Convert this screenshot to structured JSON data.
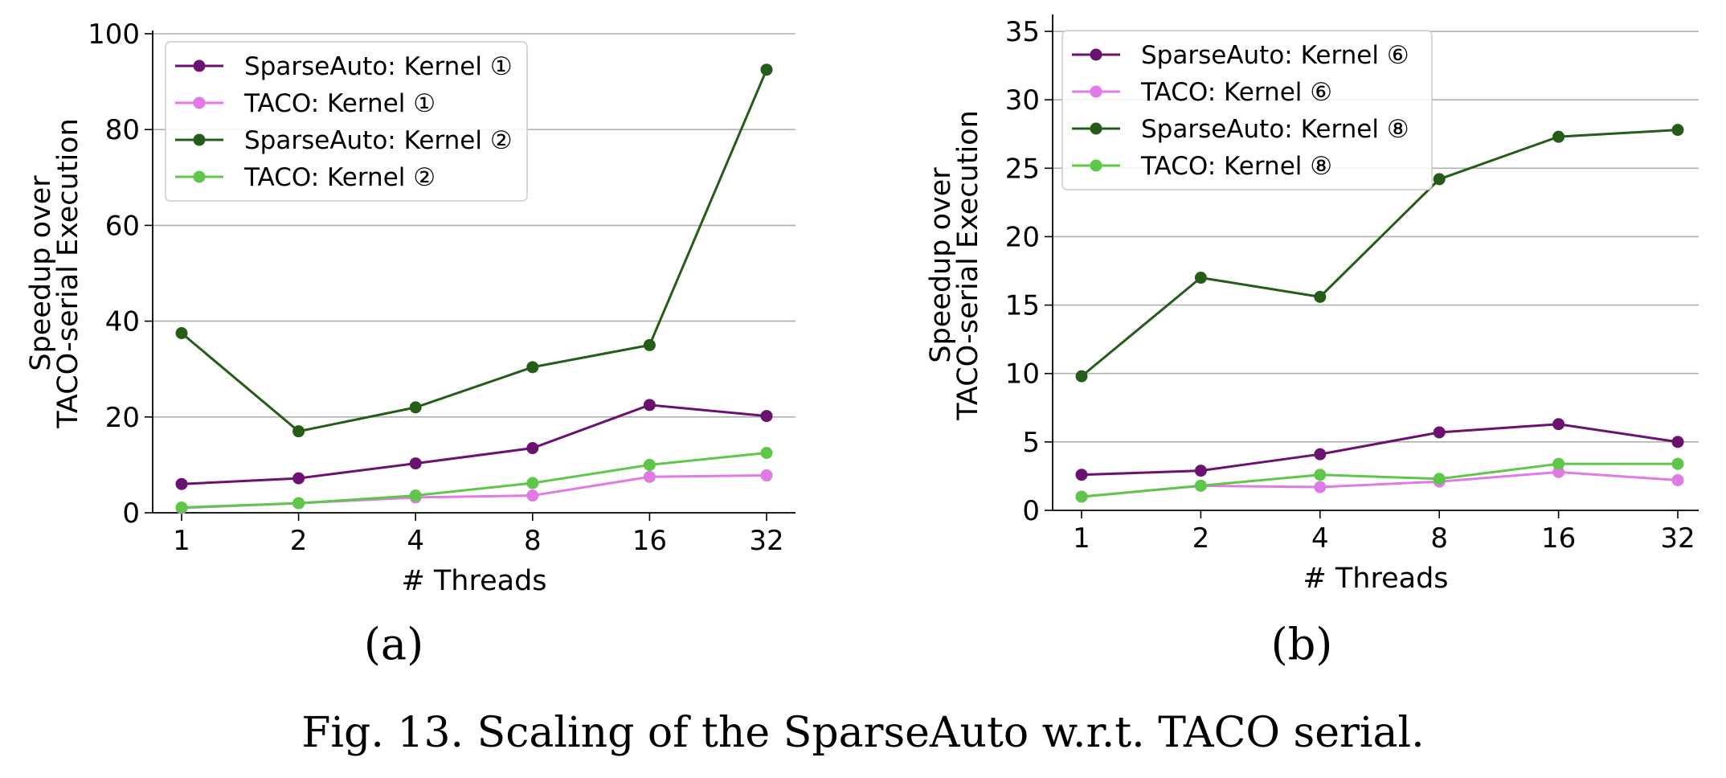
{
  "caption": "Fig. 13.  Scaling of the SparseAuto w.r.t. TACO serial.",
  "chart_data": [
    {
      "type": "line",
      "panel_label": "(a)",
      "xlabel": "# Threads",
      "ylabel": [
        "Speedup over",
        "TACO-serial Execution"
      ],
      "categories": [
        "1",
        "2",
        "4",
        "8",
        "16",
        "32"
      ],
      "ylim": [
        0,
        100
      ],
      "yticks": [
        0,
        20,
        40,
        60,
        80,
        100
      ],
      "grid": "horizontal",
      "legend_position": "upper-left",
      "series": [
        {
          "name": "SparseAuto: Kernel ①",
          "color": "#6b1270",
          "values": [
            6,
            7.2,
            10.3,
            13.5,
            22.5,
            20.2
          ]
        },
        {
          "name": "TACO: Kernel ①",
          "color": "#e07ae6",
          "values": [
            1,
            2,
            3.2,
            3.6,
            7.5,
            7.8
          ]
        },
        {
          "name": "SparseAuto: Kernel ②",
          "color": "#245c18",
          "values": [
            37.5,
            17,
            22,
            30.4,
            35,
            92.5
          ]
        },
        {
          "name": "TACO: Kernel ②",
          "color": "#5ec74a",
          "values": [
            1.1,
            2,
            3.6,
            6.2,
            10,
            12.5
          ]
        }
      ]
    },
    {
      "type": "line",
      "panel_label": "(b)",
      "xlabel": "# Threads",
      "ylabel": [
        "Speedup over",
        "TACO-serial Execution"
      ],
      "categories": [
        "1",
        "2",
        "4",
        "8",
        "16",
        "32"
      ],
      "ylim": [
        0,
        36
      ],
      "yticks": [
        0,
        5,
        10,
        15,
        20,
        25,
        30,
        35
      ],
      "grid": "horizontal",
      "legend_position": "upper-left",
      "series": [
        {
          "name": "SparseAuto: Kernel ⑥",
          "color": "#6b1270",
          "values": [
            2.6,
            2.9,
            4.1,
            5.7,
            6.3,
            5
          ]
        },
        {
          "name": "TACO: Kernel ⑥",
          "color": "#e07ae6",
          "values": [
            1,
            1.8,
            1.7,
            2.1,
            2.8,
            2.2
          ]
        },
        {
          "name": "SparseAuto: Kernel ⑧",
          "color": "#245c18",
          "values": [
            9.8,
            17,
            15.6,
            24.2,
            27.3,
            27.8
          ]
        },
        {
          "name": "TACO: Kernel ⑧",
          "color": "#5ec74a",
          "values": [
            1,
            1.8,
            2.6,
            2.3,
            3.4,
            3.4
          ]
        }
      ]
    }
  ]
}
